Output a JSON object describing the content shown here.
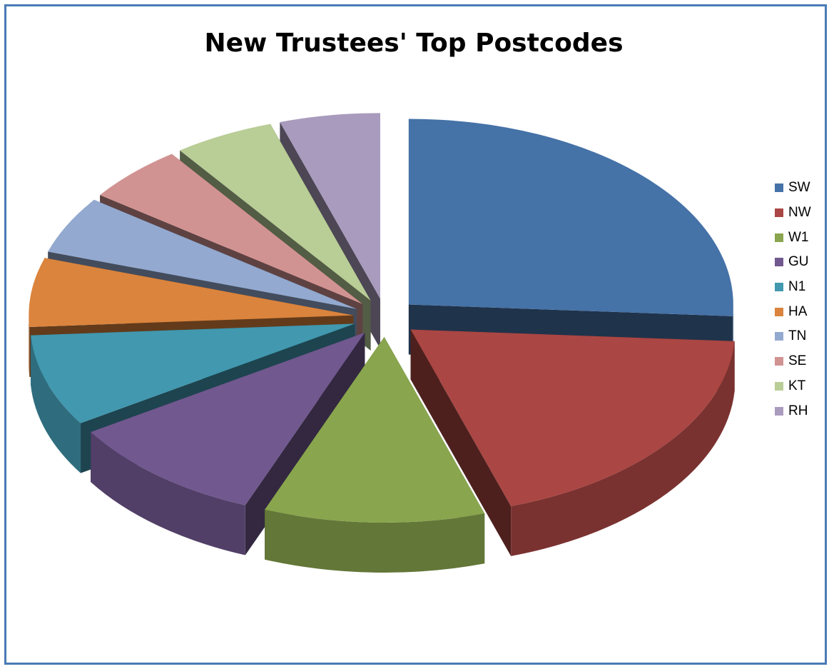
{
  "chart_data": {
    "type": "pie",
    "title": "New Trustees' Top Postcodes",
    "categories": [
      "SW",
      "NW",
      "W1",
      "GU",
      "N1",
      "HA",
      "TN",
      "SE",
      "KT",
      "RH"
    ],
    "values": [
      26,
      19,
      11,
      10,
      8,
      6,
      5,
      5,
      5,
      5
    ],
    "colors": [
      "#4572a7",
      "#aa4643",
      "#89a54e",
      "#71588f",
      "#4198af",
      "#db843d",
      "#93a9cf",
      "#d19392",
      "#b9cd96",
      "#a99bbd"
    ],
    "legend_position": "right",
    "exploded": true,
    "three_d": true
  }
}
